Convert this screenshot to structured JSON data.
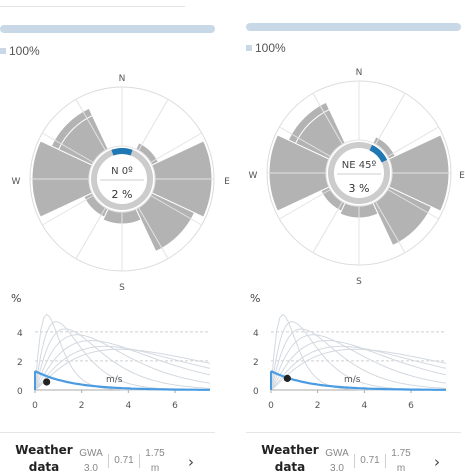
{
  "panels": [
    {
      "share_percent": 100,
      "share_label": "100%",
      "directions": {
        "n": "N",
        "e": "E",
        "s": "S",
        "w": "W"
      },
      "center_direction": "N 0º",
      "center_value": "2 %",
      "selected_direction_deg": 0,
      "chart_data": {
        "type": "line",
        "ylabel": "%",
        "xlabel": "m/s",
        "x_ticks": [
          "0",
          "2",
          "4",
          "6"
        ],
        "y_ticks": [
          "0",
          "2",
          "4"
        ],
        "xlim": [
          0,
          7.5
        ],
        "ylim": [
          0,
          5.5
        ],
        "marker": {
          "x": 0.5,
          "y": 0.55
        },
        "series": [
          {
            "values_peak": [
              0.5,
              5.2
            ]
          },
          {
            "values_peak": [
              0.9,
              4.7
            ]
          },
          {
            "values_peak": [
              1.3,
              4.2
            ]
          },
          {
            "values_peak": [
              1.8,
              3.8
            ]
          },
          {
            "values_peak": [
              2.4,
              3.4
            ]
          },
          {
            "values_peak": [
              3.0,
              3.0
            ]
          },
          {
            "values_peak": [
              3.6,
              2.8
            ]
          }
        ]
      },
      "footer": {
        "title_line1": "Weather",
        "title_line2": "data",
        "source_line1": "GWA",
        "source_line2": "3.0",
        "value": "0.71",
        "height_line1": "1.75",
        "height_line2": "m",
        "chevron": "›"
      }
    },
    {
      "share_percent": 100,
      "share_label": "100%",
      "directions": {
        "n": "N",
        "e": "E",
        "s": "S",
        "w": "W"
      },
      "center_direction": "NE 45º",
      "center_value": "3 %",
      "selected_direction_deg": 45,
      "chart_data": {
        "type": "line",
        "ylabel": "%",
        "xlabel": "m/s",
        "x_ticks": [
          "0",
          "2",
          "4",
          "6"
        ],
        "y_ticks": [
          "0",
          "2",
          "4"
        ],
        "xlim": [
          0,
          7.5
        ],
        "ylim": [
          0,
          5.5
        ],
        "marker": {
          "x": 0.7,
          "y": 0.8
        },
        "series": [
          {
            "values_peak": [
              0.5,
              5.2
            ]
          },
          {
            "values_peak": [
              0.9,
              4.7
            ]
          },
          {
            "values_peak": [
              1.3,
              4.2
            ]
          },
          {
            "values_peak": [
              1.8,
              3.8
            ]
          },
          {
            "values_peak": [
              2.4,
              3.4
            ]
          },
          {
            "values_peak": [
              3.0,
              3.0
            ]
          },
          {
            "values_peak": [
              3.6,
              2.8
            ]
          }
        ]
      },
      "footer": {
        "title_line1": "Weather",
        "title_line2": "data",
        "source_line1": "GWA",
        "source_line2": "3.0",
        "value": "0.71",
        "height_line1": "1.75",
        "height_line2": "m",
        "chevron": "›"
      }
    }
  ],
  "colors": {
    "accent": "#1f77b4",
    "bar": "#c8d8e6",
    "sector": "#b3b3b3",
    "grid": "#dddddd",
    "curve": "#d3d9e0",
    "highlight_curve": "#4a9be0"
  }
}
